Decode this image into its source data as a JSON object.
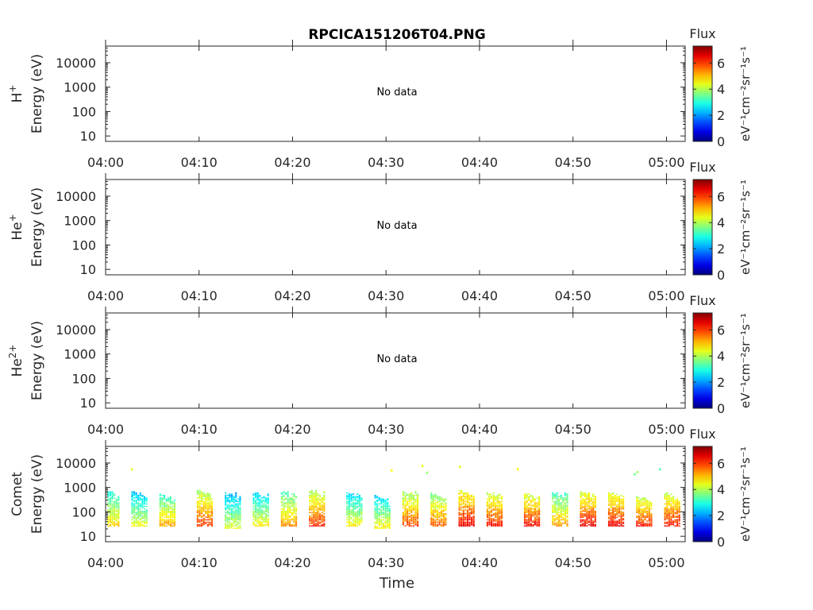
{
  "chart_data": {
    "type": "heatmap",
    "title": "RPCICA151206T04.PNG",
    "xlabel": "Time",
    "x_ticks": [
      "04:00",
      "04:10",
      "04:20",
      "04:30",
      "04:40",
      "04:50",
      "05:00"
    ],
    "y_scale": "log",
    "y_ticks": [
      "10",
      "100",
      "1000",
      "10000"
    ],
    "colorbar": {
      "label": "Flux",
      "units": "eV⁻¹cm⁻²sr⁻¹s⁻¹",
      "ticks": [
        "0",
        "2",
        "4",
        "6"
      ],
      "range": [
        0,
        7.3
      ],
      "colormap": "jet"
    },
    "panels": [
      {
        "species": "H",
        "charge": "+",
        "ylabel": "Energy (eV)",
        "status": "No data"
      },
      {
        "species": "He",
        "charge": "+",
        "ylabel": "Energy (eV)",
        "status": "No data"
      },
      {
        "species": "He",
        "charge": "2+",
        "ylabel": "Energy (eV)",
        "status": "No data"
      },
      {
        "species": "Comet",
        "charge": "",
        "ylabel": "Energy (eV)",
        "status": "",
        "bursts": [
          {
            "t": "04:00",
            "e_min": 25,
            "e_max": 800,
            "peak_flux": 5.3
          },
          {
            "t": "04:03",
            "e_min": 25,
            "e_max": 700,
            "peak_flux": 4.8
          },
          {
            "t": "04:06",
            "e_min": 25,
            "e_max": 500,
            "peak_flux": 5.6
          },
          {
            "t": "04:10",
            "e_min": 25,
            "e_max": 750,
            "peak_flux": 6.4
          },
          {
            "t": "04:13",
            "e_min": 20,
            "e_max": 600,
            "peak_flux": 4.7
          },
          {
            "t": "04:16",
            "e_min": 25,
            "e_max": 600,
            "peak_flux": 5.0
          },
          {
            "t": "04:19",
            "e_min": 25,
            "e_max": 700,
            "peak_flux": 5.8
          },
          {
            "t": "04:22",
            "e_min": 25,
            "e_max": 750,
            "peak_flux": 6.5
          },
          {
            "t": "04:26",
            "e_min": 25,
            "e_max": 600,
            "peak_flux": 5.0
          },
          {
            "t": "04:29",
            "e_min": 20,
            "e_max": 450,
            "peak_flux": 5.0
          },
          {
            "t": "04:32",
            "e_min": 25,
            "e_max": 700,
            "peak_flux": 6.3
          },
          {
            "t": "04:35",
            "e_min": 25,
            "e_max": 600,
            "peak_flux": 6.1
          },
          {
            "t": "04:38",
            "e_min": 25,
            "e_max": 800,
            "peak_flux": 6.9
          },
          {
            "t": "04:41",
            "e_min": 25,
            "e_max": 650,
            "peak_flux": 6.6
          },
          {
            "t": "04:45",
            "e_min": 25,
            "e_max": 550,
            "peak_flux": 6.7
          },
          {
            "t": "04:48",
            "e_min": 25,
            "e_max": 600,
            "peak_flux": 5.7
          },
          {
            "t": "04:51",
            "e_min": 25,
            "e_max": 650,
            "peak_flux": 6.8
          },
          {
            "t": "04:54",
            "e_min": 25,
            "e_max": 600,
            "peak_flux": 6.8
          },
          {
            "t": "04:57",
            "e_min": 25,
            "e_max": 400,
            "peak_flux": 6.6
          },
          {
            "t": "05:00",
            "e_min": 25,
            "e_max": 600,
            "peak_flux": 6.7
          }
        ],
        "isolated_points": [
          {
            "t": "04:02.7",
            "e": 5500,
            "flux": 4.4
          },
          {
            "t": "04:30.5",
            "e": 5000,
            "flux": 4.6
          },
          {
            "t": "04:33.8",
            "e": 7500,
            "flux": 4.4
          },
          {
            "t": "04:34.3",
            "e": 4000,
            "flux": 3.8
          },
          {
            "t": "04:37.8",
            "e": 7000,
            "flux": 4.4
          },
          {
            "t": "04:44.0",
            "e": 5500,
            "flux": 4.6
          },
          {
            "t": "04:56.5",
            "e": 3500,
            "flux": 3.5
          },
          {
            "t": "04:56.8",
            "e": 4200,
            "flux": 3.9
          },
          {
            "t": "04:59.2",
            "e": 5500,
            "flux": 3.3
          }
        ]
      }
    ]
  }
}
